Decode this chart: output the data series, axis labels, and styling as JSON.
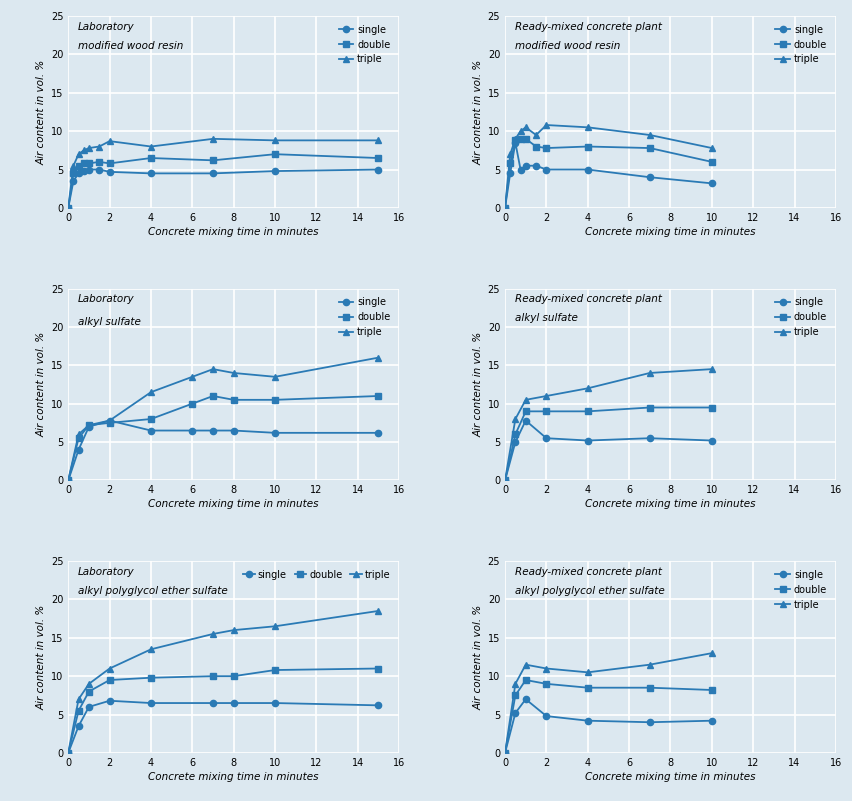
{
  "background_color": "#dce8f0",
  "line_color": "#2a7ab5",
  "grid_color": "#ffffff",
  "plots": [
    {
      "title_line1": "Laboratory",
      "title_line2": "modified wood resin",
      "legend_pos": "right",
      "series": [
        {
          "label": "single",
          "marker": "o",
          "x": [
            0,
            0.25,
            0.5,
            0.75,
            1.0,
            1.5,
            2.0,
            4.0,
            7.0,
            10.0,
            15.0
          ],
          "y": [
            0,
            3.5,
            4.5,
            4.8,
            5.0,
            5.0,
            4.7,
            4.5,
            4.5,
            4.8,
            5.0
          ]
        },
        {
          "label": "double",
          "marker": "s",
          "x": [
            0,
            0.25,
            0.5,
            0.75,
            1.0,
            1.5,
            2.0,
            4.0,
            7.0,
            10.0,
            15.0
          ],
          "y": [
            0,
            4.5,
            5.5,
            5.8,
            5.8,
            6.0,
            5.8,
            6.5,
            6.2,
            7.0,
            6.5
          ]
        },
        {
          "label": "triple",
          "marker": "^",
          "x": [
            0,
            0.25,
            0.5,
            0.75,
            1.0,
            1.5,
            2.0,
            4.0,
            7.0,
            10.0,
            15.0
          ],
          "y": [
            0,
            5.5,
            7.0,
            7.5,
            7.8,
            8.0,
            8.7,
            8.0,
            9.0,
            8.8,
            8.8
          ]
        }
      ]
    },
    {
      "title_line1": "Ready-mixed concrete plant",
      "title_line2": "modified wood resin",
      "legend_pos": "right",
      "series": [
        {
          "label": "single",
          "marker": "o",
          "x": [
            0,
            0.25,
            0.5,
            0.75,
            1.0,
            1.5,
            2.0,
            4.0,
            7.0,
            10.0
          ],
          "y": [
            0,
            4.5,
            8.5,
            5.0,
            5.5,
            5.5,
            5.0,
            5.0,
            4.0,
            3.2
          ]
        },
        {
          "label": "double",
          "marker": "s",
          "x": [
            0,
            0.25,
            0.5,
            0.75,
            1.0,
            1.5,
            2.0,
            4.0,
            7.0,
            10.0
          ],
          "y": [
            0,
            5.8,
            8.8,
            9.0,
            9.0,
            8.0,
            7.8,
            8.0,
            7.8,
            6.0
          ]
        },
        {
          "label": "triple",
          "marker": "^",
          "x": [
            0,
            0.25,
            0.5,
            0.75,
            1.0,
            1.5,
            2.0,
            4.0,
            7.0,
            10.0
          ],
          "y": [
            0,
            7.0,
            9.0,
            10.0,
            10.5,
            9.5,
            10.8,
            10.5,
            9.5,
            7.8
          ]
        }
      ]
    },
    {
      "title_line1": "Laboratory",
      "title_line2": "alkyl sulfate",
      "legend_pos": "right_top",
      "series": [
        {
          "label": "single",
          "marker": "o",
          "x": [
            0,
            0.5,
            1.0,
            2.0,
            4.0,
            6.0,
            7.0,
            8.0,
            10.0,
            15.0
          ],
          "y": [
            0,
            4.0,
            7.0,
            7.8,
            6.5,
            6.5,
            6.5,
            6.5,
            6.2,
            6.2
          ]
        },
        {
          "label": "double",
          "marker": "s",
          "x": [
            0,
            0.5,
            1.0,
            2.0,
            4.0,
            6.0,
            7.0,
            8.0,
            10.0,
            15.0
          ],
          "y": [
            0,
            5.5,
            7.2,
            7.5,
            8.0,
            10.0,
            11.0,
            10.5,
            10.5,
            11.0
          ]
        },
        {
          "label": "triple",
          "marker": "^",
          "x": [
            0,
            0.5,
            1.0,
            2.0,
            4.0,
            6.0,
            7.0,
            8.0,
            10.0,
            15.0
          ],
          "y": [
            0,
            6.0,
            7.2,
            7.8,
            11.5,
            13.5,
            14.5,
            14.0,
            13.5,
            16.0
          ]
        }
      ]
    },
    {
      "title_line1": "Ready-mixed concrete plant",
      "title_line2": "alkyl sulfate",
      "legend_pos": "right",
      "series": [
        {
          "label": "single",
          "marker": "o",
          "x": [
            0,
            0.5,
            1.0,
            2.0,
            4.0,
            7.0,
            10.0
          ],
          "y": [
            0,
            5.0,
            7.8,
            5.5,
            5.2,
            5.5,
            5.2
          ]
        },
        {
          "label": "double",
          "marker": "s",
          "x": [
            0,
            0.5,
            1.0,
            2.0,
            4.0,
            7.0,
            10.0
          ],
          "y": [
            0,
            6.0,
            9.0,
            9.0,
            9.0,
            9.5,
            9.5
          ]
        },
        {
          "label": "triple",
          "marker": "^",
          "x": [
            0,
            0.5,
            1.0,
            2.0,
            4.0,
            7.0,
            10.0
          ],
          "y": [
            0,
            8.0,
            10.5,
            11.0,
            12.0,
            14.0,
            14.5
          ]
        }
      ]
    },
    {
      "title_line1": "Laboratory",
      "title_line2": "alkyl polyglycol ether sulfate",
      "legend_pos": "top_inline",
      "series": [
        {
          "label": "single",
          "marker": "o",
          "x": [
            0,
            0.5,
            1.0,
            2.0,
            4.0,
            7.0,
            8.0,
            10.0,
            15.0
          ],
          "y": [
            0,
            3.5,
            6.0,
            6.8,
            6.5,
            6.5,
            6.5,
            6.5,
            6.2
          ]
        },
        {
          "label": "double",
          "marker": "s",
          "x": [
            0,
            0.5,
            1.0,
            2.0,
            4.0,
            7.0,
            8.0,
            10.0,
            15.0
          ],
          "y": [
            0,
            5.5,
            8.0,
            9.5,
            9.8,
            10.0,
            10.0,
            10.8,
            11.0
          ]
        },
        {
          "label": "triple",
          "marker": "^",
          "x": [
            0,
            0.5,
            1.0,
            2.0,
            4.0,
            7.0,
            8.0,
            10.0,
            15.0
          ],
          "y": [
            0,
            7.0,
            9.0,
            11.0,
            13.5,
            15.5,
            16.0,
            16.5,
            18.5
          ]
        }
      ]
    },
    {
      "title_line1": "Ready-mixed concrete plant",
      "title_line2": "alkyl polyglycol ether sulfate",
      "legend_pos": "right",
      "series": [
        {
          "label": "single",
          "marker": "o",
          "x": [
            0,
            0.5,
            1.0,
            2.0,
            4.0,
            7.0,
            10.0
          ],
          "y": [
            0,
            5.2,
            7.0,
            4.8,
            4.2,
            4.0,
            4.2
          ]
        },
        {
          "label": "double",
          "marker": "s",
          "x": [
            0,
            0.5,
            1.0,
            2.0,
            4.0,
            7.0,
            10.0
          ],
          "y": [
            0,
            7.5,
            9.5,
            9.0,
            8.5,
            8.5,
            8.2
          ]
        },
        {
          "label": "triple",
          "marker": "^",
          "x": [
            0,
            0.5,
            1.0,
            2.0,
            4.0,
            7.0,
            10.0
          ],
          "y": [
            0,
            9.0,
            11.5,
            11.0,
            10.5,
            11.5,
            13.0
          ]
        }
      ]
    }
  ],
  "ylabel": "Air content in vol. %",
  "xlabel": "Concrete mixing time in minutes",
  "yticks": [
    0,
    5,
    10,
    15,
    20,
    25
  ],
  "xticks": [
    0,
    2,
    4,
    6,
    8,
    10,
    12,
    14,
    16
  ],
  "ylim": [
    0,
    25
  ],
  "xlim": [
    0,
    16
  ]
}
